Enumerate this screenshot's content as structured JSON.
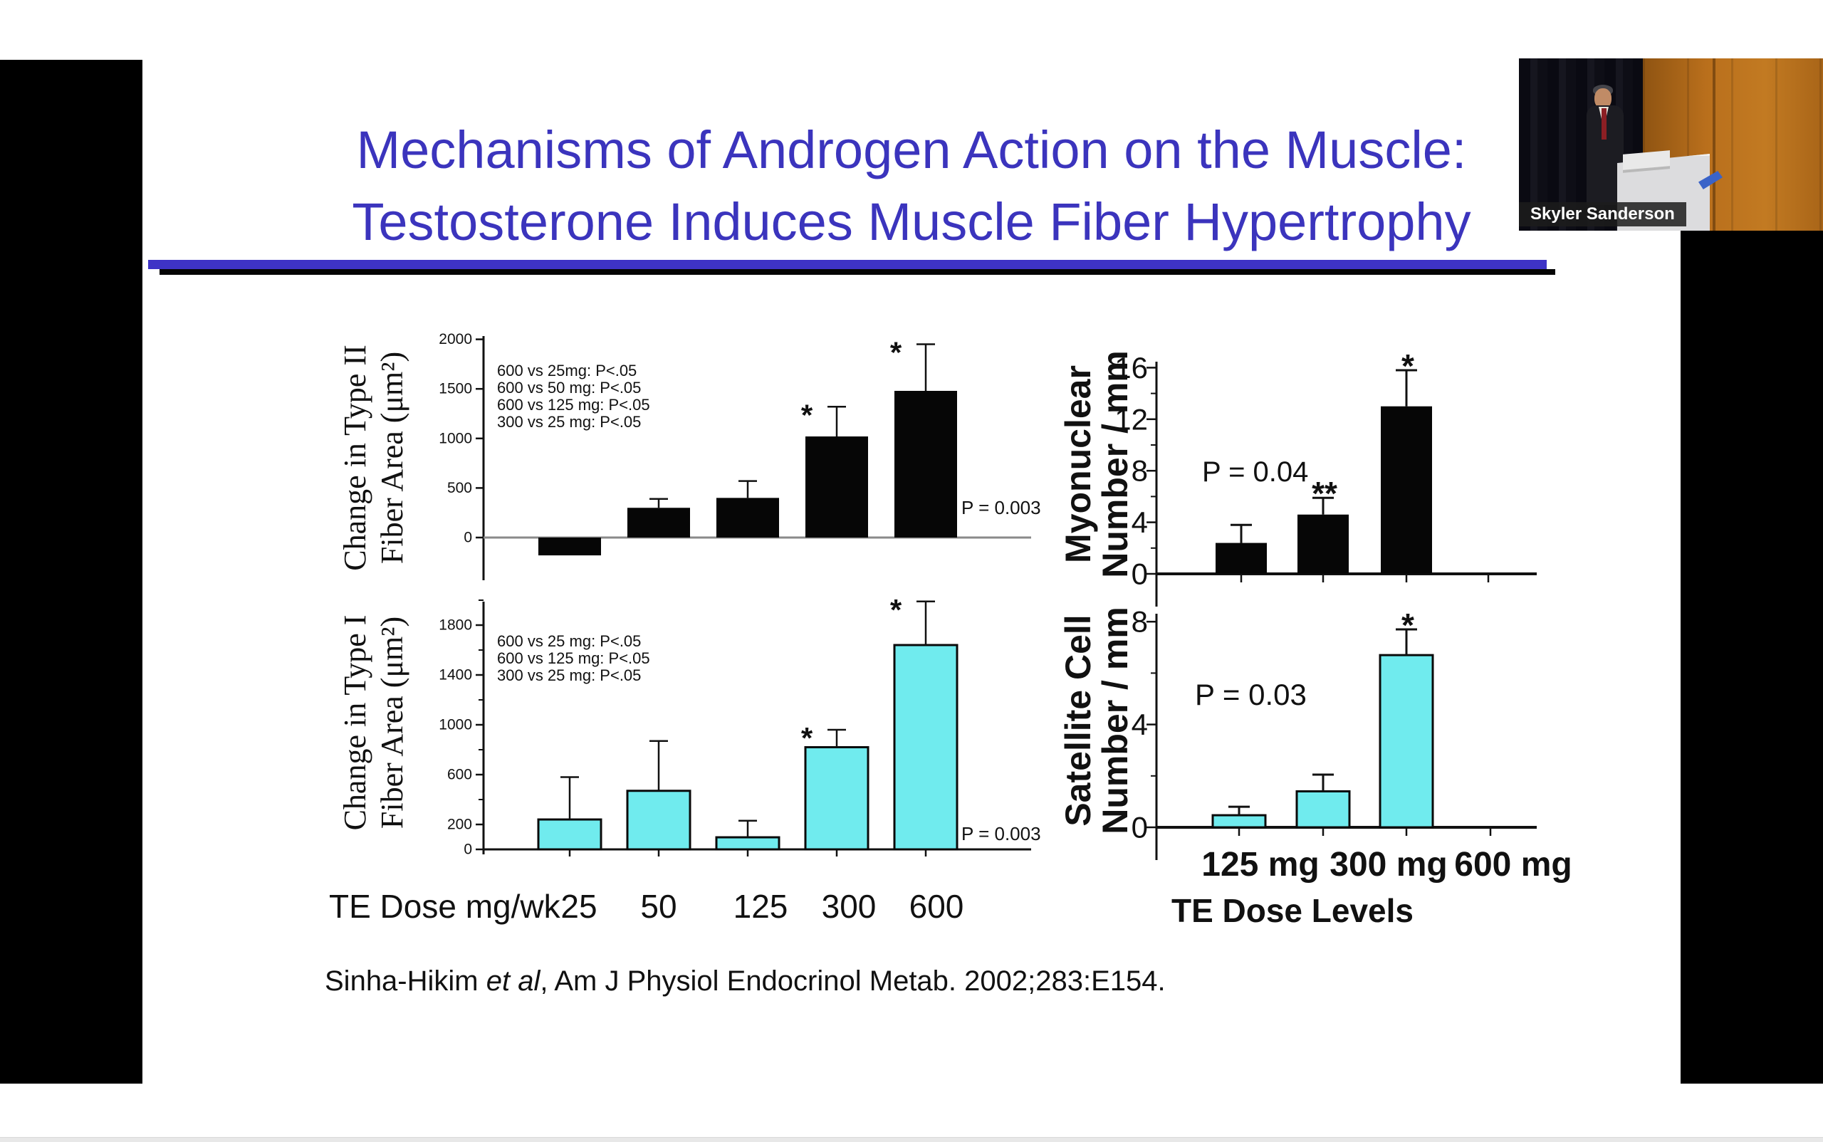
{
  "meeting": {
    "speaker_name": "Skyler Sanderson"
  },
  "slide": {
    "title_line1": "Mechanisms of Androgen Action on the Muscle:",
    "title_line2": "Testosterone Induces Muscle Fiber Hypertrophy",
    "title_color": "#3b34bd",
    "underline_color": "#3e33c6",
    "dose_axis": {
      "label": "TE Dose mg/wk",
      "values": [
        "25",
        "50",
        "125",
        "300",
        "600"
      ]
    },
    "citation": {
      "prefix": "Sinha-Hikim ",
      "italic": "et al",
      "suffix": ", Am J Physiol Endocrinol Metab. 2002;283:E154."
    }
  },
  "chart_data": [
    {
      "id": "typeII",
      "type": "bar",
      "title": "Change in Type II fiber area vs TE dose",
      "ylabel_lines": [
        "Change in Type II",
        "Fiber Area (μm²)"
      ],
      "categories": [
        "25",
        "50",
        "125",
        "300",
        "600"
      ],
      "values": [
        -180,
        300,
        400,
        1020,
        1480
      ],
      "error_top": [
        null,
        390,
        570,
        1320,
        1950
      ],
      "significance": [
        "",
        "",
        "",
        "*",
        "*"
      ],
      "yticks": [
        0,
        500,
        1000,
        1500,
        2000
      ],
      "yticks_minor": [],
      "ylim": [
        -430,
        2030
      ],
      "bar_color": "#060606",
      "annotations": [
        "600 vs 25mg: P<.05",
        "600 vs 50 mg: P<.05",
        "600 vs 125 mg: P<.05",
        "300 vs 25 mg: P<.05"
      ],
      "p_label": "P = 0.003",
      "grid": false,
      "legend": "none"
    },
    {
      "id": "typeI",
      "type": "bar",
      "title": "Change in Type I fiber area vs TE dose",
      "ylabel_lines": [
        "Change in Type I",
        "Fiber Area (μm²)"
      ],
      "categories": [
        "25",
        "50",
        "125",
        "300",
        "600"
      ],
      "values": [
        240,
        470,
        97,
        820,
        1640
      ],
      "error_top": [
        580,
        870,
        230,
        960,
        1990
      ],
      "significance": [
        "",
        "",
        "",
        "*",
        "*"
      ],
      "yticks": [
        0,
        200,
        600,
        1000,
        1400,
        1800
      ],
      "yticks_minor": [
        400,
        800,
        1200,
        1600,
        2000
      ],
      "ylim": [
        0,
        1990
      ],
      "bar_color": "#70ebee",
      "bar_stroke": "#0a0a0a",
      "annotations": [
        "600 vs 25 mg: P<.05",
        "600 vs 125 mg: P<.05",
        "300 vs 25 mg: P<.05"
      ],
      "p_label": "P = 0.003",
      "grid": false,
      "legend": "none"
    },
    {
      "id": "myonuclear",
      "type": "bar",
      "title": "Myonuclear number vs TE dose",
      "ylabel_lines": [
        "Myonuclear",
        "Number / mm"
      ],
      "categories": [
        "125 mg",
        "300 mg",
        "600 mg"
      ],
      "values": [
        2.4,
        4.6,
        13.0
      ],
      "error_top": [
        3.8,
        5.9,
        15.8
      ],
      "significance": [
        "",
        "**",
        "*"
      ],
      "yticks": [
        0,
        4,
        8,
        12,
        16
      ],
      "yticks_minor": [
        2,
        6,
        10,
        14
      ],
      "ylim": [
        0,
        16.5
      ],
      "bar_color": "#060606",
      "p_label": "P = 0.04",
      "grid": false,
      "legend": "none"
    },
    {
      "id": "satellite",
      "type": "bar",
      "title": "Satellite cell number vs TE dose",
      "ylabel_lines": [
        "Satellite Cell",
        "Number / mm"
      ],
      "categories": [
        "125 mg",
        "300 mg",
        "600 mg"
      ],
      "values": [
        0.47,
        1.4,
        6.7
      ],
      "error_top": [
        0.8,
        2.05,
        7.7
      ],
      "significance": [
        "",
        "",
        "*"
      ],
      "yticks": [
        0,
        4,
        8
      ],
      "yticks_minor": [
        2,
        6
      ],
      "ylim": [
        0,
        8.3
      ],
      "bar_color": "#70ebee",
      "bar_stroke": "#0a0a0a",
      "p_label": "P = 0.03",
      "xtick_labels": [
        "125 mg",
        "300 mg",
        "600 mg"
      ],
      "xlabel": "TE Dose Levels",
      "grid": false,
      "legend": "none"
    }
  ]
}
